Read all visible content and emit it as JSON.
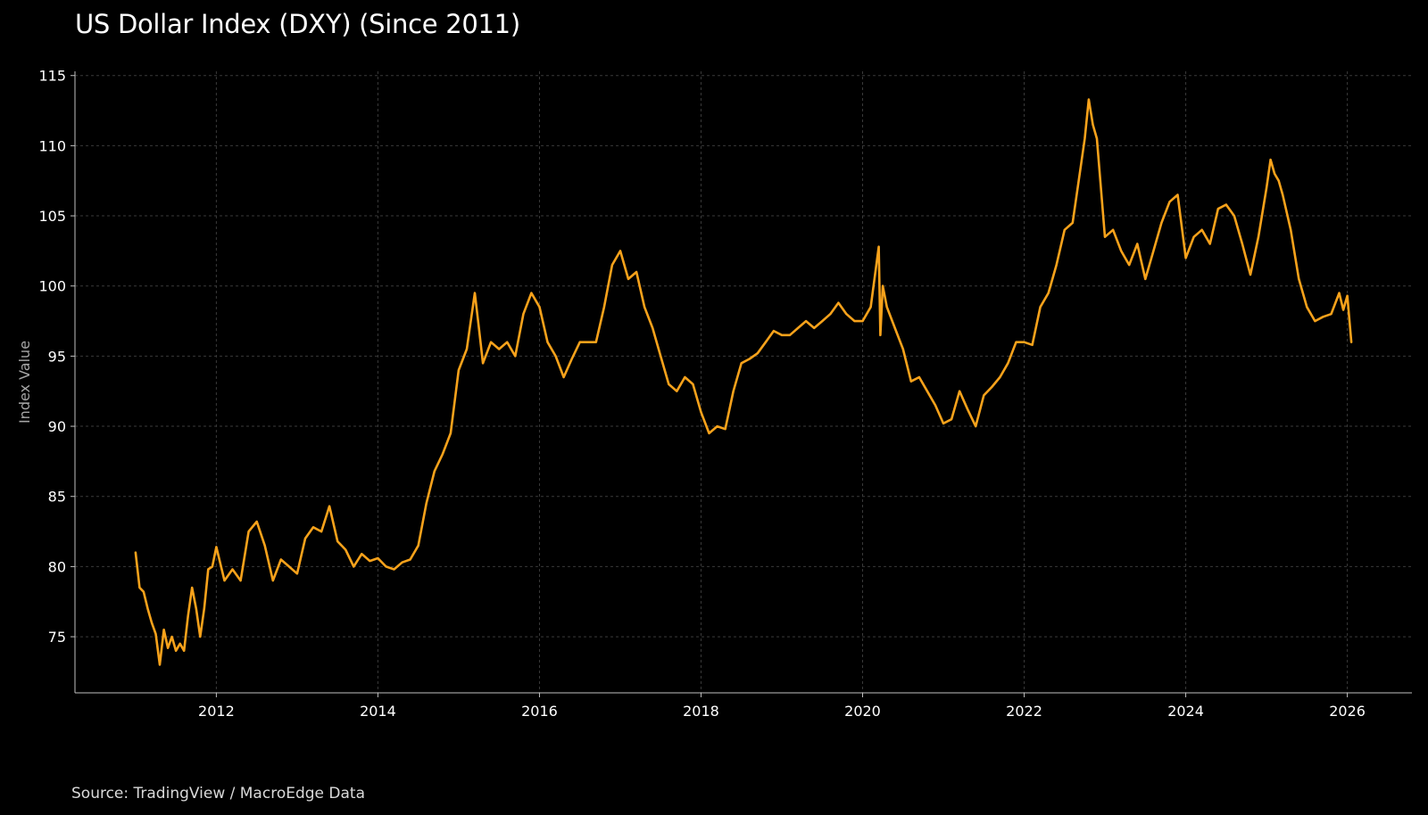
{
  "chart_data": {
    "type": "line",
    "title": "US Dollar Index (DXY) (Since 2011)",
    "xlabel": "",
    "ylabel": "Index Value",
    "source": "Source: TradingView / MacroEdge Data",
    "grid": true,
    "xlim": [
      2010.25,
      2026.8
    ],
    "ylim": [
      71,
      115.3
    ],
    "x_ticks": [
      2012,
      2014,
      2016,
      2018,
      2020,
      2022,
      2024,
      2026
    ],
    "x_tick_labels": [
      "2012",
      "2014",
      "2016",
      "2018",
      "2020",
      "2022",
      "2024",
      "2026"
    ],
    "y_ticks": [
      75,
      80,
      85,
      90,
      95,
      100,
      105,
      110,
      115
    ],
    "y_tick_labels": [
      "75",
      "80",
      "85",
      "90",
      "95",
      "100",
      "105",
      "110",
      "115"
    ],
    "series": [
      {
        "name": "DXY",
        "color": "#f7a21b",
        "x": [
          2011.0,
          2011.05,
          2011.1,
          2011.15,
          2011.2,
          2011.25,
          2011.3,
          2011.35,
          2011.4,
          2011.45,
          2011.5,
          2011.55,
          2011.6,
          2011.65,
          2011.7,
          2011.75,
          2011.8,
          2011.85,
          2011.9,
          2011.95,
          2012.0,
          2012.1,
          2012.2,
          2012.3,
          2012.4,
          2012.5,
          2012.6,
          2012.7,
          2012.8,
          2012.9,
          2013.0,
          2013.1,
          2013.2,
          2013.3,
          2013.4,
          2013.5,
          2013.6,
          2013.7,
          2013.8,
          2013.9,
          2014.0,
          2014.1,
          2014.2,
          2014.3,
          2014.4,
          2014.5,
          2014.6,
          2014.7,
          2014.8,
          2014.9,
          2015.0,
          2015.1,
          2015.2,
          2015.25,
          2015.3,
          2015.4,
          2015.5,
          2015.6,
          2015.7,
          2015.8,
          2015.9,
          2016.0,
          2016.1,
          2016.2,
          2016.3,
          2016.4,
          2016.5,
          2016.6,
          2016.7,
          2016.8,
          2016.9,
          2017.0,
          2017.1,
          2017.2,
          2017.3,
          2017.4,
          2017.5,
          2017.6,
          2017.7,
          2017.8,
          2017.9,
          2018.0,
          2018.1,
          2018.2,
          2018.3,
          2018.4,
          2018.5,
          2018.6,
          2018.7,
          2018.8,
          2018.9,
          2019.0,
          2019.1,
          2019.2,
          2019.3,
          2019.4,
          2019.5,
          2019.6,
          2019.7,
          2019.8,
          2019.9,
          2020.0,
          2020.1,
          2020.2,
          2020.22,
          2020.25,
          2020.3,
          2020.4,
          2020.5,
          2020.6,
          2020.7,
          2020.8,
          2020.9,
          2021.0,
          2021.1,
          2021.2,
          2021.3,
          2021.4,
          2021.5,
          2021.6,
          2021.7,
          2021.8,
          2021.9,
          2022.0,
          2022.1,
          2022.2,
          2022.3,
          2022.4,
          2022.5,
          2022.6,
          2022.7,
          2022.75,
          2022.8,
          2022.85,
          2022.9,
          2023.0,
          2023.1,
          2023.2,
          2023.3,
          2023.4,
          2023.5,
          2023.6,
          2023.7,
          2023.8,
          2023.9,
          2024.0,
          2024.1,
          2024.2,
          2024.3,
          2024.4,
          2024.5,
          2024.6,
          2024.7,
          2024.8,
          2024.9,
          2025.0,
          2025.05,
          2025.1,
          2025.15,
          2025.2,
          2025.3,
          2025.4,
          2025.5,
          2025.6,
          2025.7,
          2025.8,
          2025.9,
          2025.95,
          2026.0,
          2026.05
        ],
        "y": [
          81.0,
          78.5,
          78.2,
          77.0,
          76.0,
          75.2,
          73.0,
          75.5,
          74.2,
          75.0,
          74.0,
          74.5,
          74.0,
          76.5,
          78.5,
          77.0,
          75.0,
          77.0,
          79.8,
          80.0,
          81.4,
          79.0,
          79.8,
          79.0,
          82.5,
          83.2,
          81.5,
          79.0,
          80.5,
          80.0,
          79.5,
          82.0,
          82.8,
          82.5,
          84.3,
          81.8,
          81.2,
          80.0,
          80.9,
          80.4,
          80.6,
          80.0,
          79.8,
          80.3,
          80.5,
          81.5,
          84.5,
          86.8,
          88.0,
          89.5,
          94.0,
          95.5,
          99.5,
          97.0,
          94.5,
          96.0,
          95.5,
          96.0,
          95.0,
          98.0,
          99.5,
          98.5,
          96.0,
          95.0,
          93.5,
          94.8,
          96.0,
          96.0,
          96.0,
          98.5,
          101.5,
          102.5,
          100.5,
          101.0,
          98.5,
          97.0,
          95.0,
          93.0,
          92.5,
          93.5,
          93.0,
          91.0,
          89.5,
          90.0,
          89.8,
          92.5,
          94.5,
          94.8,
          95.2,
          96.0,
          96.8,
          96.5,
          96.5,
          97.0,
          97.5,
          97.0,
          97.5,
          98.0,
          98.8,
          98.0,
          97.5,
          97.5,
          98.5,
          102.8,
          96.5,
          100.0,
          98.5,
          97.0,
          95.5,
          93.2,
          93.5,
          92.5,
          91.5,
          90.2,
          90.5,
          92.5,
          91.2,
          90.0,
          92.2,
          92.8,
          93.5,
          94.5,
          96.0,
          96.0,
          95.8,
          98.5,
          99.5,
          101.5,
          104.0,
          104.5,
          108.5,
          110.5,
          113.3,
          111.5,
          110.5,
          103.5,
          104.0,
          102.5,
          101.5,
          103.0,
          100.5,
          102.5,
          104.5,
          106.0,
          106.5,
          102.0,
          103.5,
          104.0,
          103.0,
          105.5,
          105.8,
          105.0,
          103.0,
          100.8,
          103.5,
          107.0,
          109.0,
          108.0,
          107.5,
          106.5,
          104.0,
          100.5,
          98.5,
          97.5,
          97.8,
          98.0,
          99.5,
          98.3,
          99.3,
          96.0
        ]
      }
    ]
  }
}
